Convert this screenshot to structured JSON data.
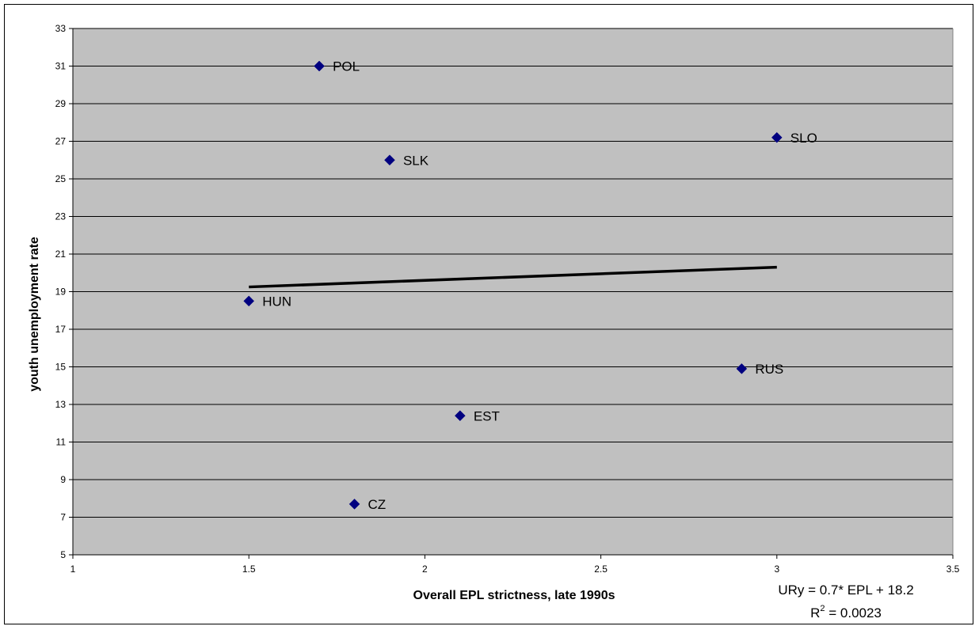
{
  "chart_data": {
    "type": "scatter",
    "xlabel": "Overall EPL strictness, late 1990s",
    "ylabel": "youth unemployment rate",
    "xlim": [
      1,
      3.5
    ],
    "ylim": [
      5,
      33
    ],
    "xticks": [
      "1",
      "1.5",
      "2",
      "2.5",
      "3",
      "3.5"
    ],
    "yticks": [
      "5",
      "7",
      "9",
      "11",
      "13",
      "15",
      "17",
      "19",
      "21",
      "23",
      "25",
      "27",
      "29",
      "31",
      "33"
    ],
    "grid": "horizontal",
    "points": [
      {
        "label": "POL",
        "x": 1.7,
        "y": 31.0
      },
      {
        "label": "SLK",
        "x": 1.9,
        "y": 26.0
      },
      {
        "label": "SLO",
        "x": 3.0,
        "y": 27.2
      },
      {
        "label": "HUN",
        "x": 1.5,
        "y": 18.5
      },
      {
        "label": "RUS",
        "x": 2.9,
        "y": 14.9
      },
      {
        "label": "EST",
        "x": 2.1,
        "y": 12.4
      },
      {
        "label": "CZ",
        "x": 1.8,
        "y": 7.7
      }
    ],
    "trendline": {
      "x": [
        1.5,
        3.0
      ],
      "y": [
        19.25,
        20.3
      ]
    },
    "equation_text": "URy = 0.7* EPL + 18.2",
    "r2_prefix": "R",
    "r2_sup": "2",
    "r2_value": " = 0.0023",
    "colors": {
      "plot_bg": "#c0c0c0",
      "marker": "#000080",
      "trend": "#000000",
      "grid": "#000000"
    }
  }
}
